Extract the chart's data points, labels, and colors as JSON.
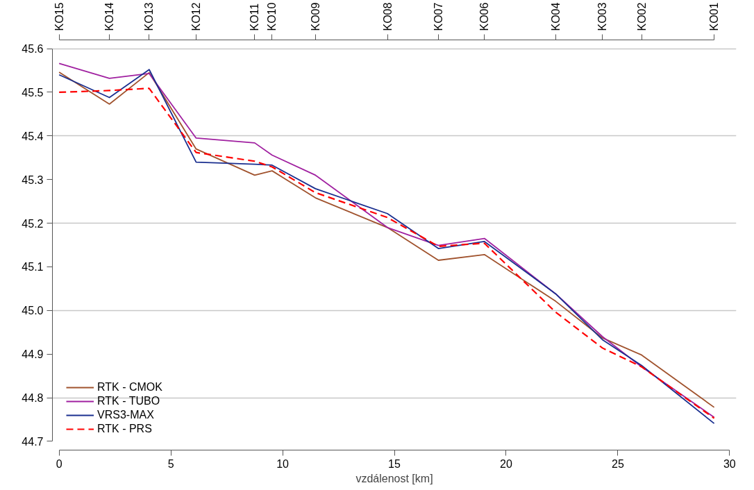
{
  "chart_data": {
    "type": "line",
    "xlabel": "vzdálenost [km]",
    "x": [
      0,
      2.25,
      4.03,
      6.13,
      8.75,
      9.53,
      11.47,
      14.69,
      16.97,
      19.03,
      22.22,
      24.31,
      26.06,
      29.31
    ],
    "series": [
      {
        "name": "RTK - CMOK",
        "color": "#a0522d",
        "line_style": "solid",
        "values": [
          45.546,
          45.473,
          45.545,
          45.37,
          45.31,
          45.32,
          45.258,
          45.19,
          45.115,
          45.128,
          45.021,
          44.937,
          44.898,
          44.778
        ]
      },
      {
        "name": "RTK - TUBO",
        "color": "#a020a0",
        "line_style": "solid",
        "values": [
          45.566,
          45.532,
          45.543,
          45.395,
          45.384,
          45.356,
          45.31,
          45.19,
          45.149,
          45.165,
          45.038,
          44.94,
          44.871,
          44.755
        ]
      },
      {
        "name": "VRS3-MAX",
        "color": "#1a2f8f",
        "line_style": "solid",
        "values": [
          45.54,
          45.488,
          45.552,
          45.34,
          45.335,
          45.333,
          45.279,
          45.222,
          45.142,
          45.158,
          45.038,
          44.933,
          44.874,
          44.741
        ]
      },
      {
        "name": "RTK - PRS",
        "color": "#ff0000",
        "line_style": "dashed",
        "values": [
          45.5,
          45.504,
          45.509,
          45.362,
          45.342,
          45.329,
          45.27,
          45.213,
          45.147,
          45.154,
          44.996,
          44.914,
          44.871,
          44.753
        ]
      }
    ],
    "xlim": [
      -0.3,
      30.3
    ],
    "xticks": [
      0,
      5,
      10,
      15,
      20,
      25,
      30
    ],
    "ylim": [
      44.68,
      45.62
    ],
    "yticks": [
      {
        "value": 44.7,
        "label": "44.7"
      },
      {
        "value": 44.8,
        "label": "44.8"
      },
      {
        "value": 44.9,
        "label": "44.9"
      },
      {
        "value": 45.0,
        "label": "45.0"
      },
      {
        "value": 45.1,
        "label": "45.1"
      },
      {
        "value": 45.2,
        "label": "45.2"
      },
      {
        "value": 45.3,
        "label": "45.3"
      },
      {
        "value": 45.4,
        "label": "45.4"
      },
      {
        "value": 45.5,
        "label": "45.5"
      },
      {
        "value": 45.6,
        "label": "45.6"
      }
    ],
    "annotations": [
      {
        "text": "KO15",
        "x": 0
      },
      {
        "text": "KO14",
        "x": 2.25
      },
      {
        "text": "KO13",
        "x": 4.03
      },
      {
        "text": "KO12",
        "x": 6.13
      },
      {
        "text": "KO11",
        "x": 8.75
      },
      {
        "text": "KO10",
        "x": 9.53
      },
      {
        "text": "KO09",
        "x": 11.47
      },
      {
        "text": "KO08",
        "x": 14.69
      },
      {
        "text": "KO07",
        "x": 16.97
      },
      {
        "text": "KO06",
        "x": 19.03
      },
      {
        "text": "KO04",
        "x": 22.22
      },
      {
        "text": "KO03",
        "x": 24.31
      },
      {
        "text": "KO02",
        "x": 26.06
      },
      {
        "text": "KO01",
        "x": 29.31
      }
    ],
    "grid": "y",
    "legend": "bottom left",
    "marker": "none"
  }
}
